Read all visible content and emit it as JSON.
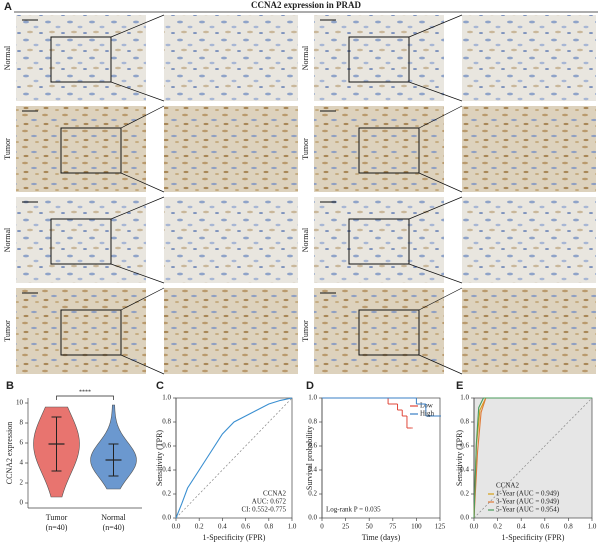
{
  "panel_a": {
    "label": "A",
    "title": "CCNA2 expression in PRAD",
    "row_labels": [
      "Normal",
      "Tumor",
      "Normal",
      "Tumor"
    ]
  },
  "chart_data": [
    {
      "type": "violin",
      "label": "B",
      "ylabel": "CCNA2 expression",
      "categories": [
        "Tumor",
        "Normal"
      ],
      "sublabels": [
        "(n=40)",
        "(n=40)"
      ],
      "colors": [
        "#e8746f",
        "#6b98cf"
      ],
      "means": [
        5.9,
        4.3
      ],
      "sd": [
        2.7,
        1.6
      ],
      "min": [
        0.6,
        1.4
      ],
      "max": [
        9.6,
        9.8
      ],
      "significance": "****",
      "ylim": [
        -0.5,
        10.5
      ],
      "yticks": [
        0,
        2,
        4,
        6,
        8,
        10
      ]
    },
    {
      "type": "roc",
      "label": "C",
      "xlabel": "1-Specificity (FPR)",
      "ylabel": "Sensitivity (TPR)",
      "legend": [
        "CCNA2",
        "AUC: 0.672",
        "CI: 0.552-0.775"
      ],
      "series": [
        {
          "color": "#3a8fd1",
          "x": [
            0,
            0.05,
            0.1,
            0.2,
            0.3,
            0.4,
            0.5,
            0.6,
            0.7,
            0.8,
            0.9,
            1.0
          ],
          "values": [
            0,
            0.12,
            0.25,
            0.4,
            0.55,
            0.7,
            0.8,
            0.85,
            0.9,
            0.95,
            0.98,
            1.0
          ]
        }
      ],
      "xlim": [
        0,
        1
      ],
      "ylim": [
        0,
        1
      ],
      "xticks": [
        {
          "value": 0,
          "label": "0.0"
        },
        {
          "value": 0.2,
          "label": "0.2"
        },
        {
          "value": 0.4,
          "label": "0.4"
        },
        {
          "value": 0.6,
          "label": "0.6"
        },
        {
          "value": 0.8,
          "label": "0.8"
        },
        {
          "value": 1,
          "label": "1.0"
        }
      ],
      "yticks": [
        {
          "value": 0,
          "label": "0.0"
        },
        {
          "value": 0.2,
          "label": "0.2"
        },
        {
          "value": 0.4,
          "label": "0.4"
        },
        {
          "value": 0.6,
          "label": "0.6"
        },
        {
          "value": 0.8,
          "label": "0.8"
        },
        {
          "value": 1,
          "label": "1.0"
        }
      ]
    },
    {
      "type": "survival",
      "label": "D",
      "xlabel": "Time (days)",
      "ylabel": "Survival probability",
      "annotation": "Log-rank P = 0.035",
      "series": [
        {
          "name": "Low",
          "color": "#e0473a",
          "x": [
            0,
            60,
            70,
            80,
            85,
            90,
            95
          ],
          "values": [
            1,
            1,
            0.95,
            0.9,
            0.85,
            0.75,
            0.75
          ]
        },
        {
          "name": "High",
          "color": "#3a7fc4",
          "x": [
            0,
            95,
            100,
            110,
            125
          ],
          "values": [
            1,
            1,
            0.95,
            0.85,
            0.85
          ]
        }
      ],
      "xlim": [
        0,
        125
      ],
      "ylim": [
        0,
        1
      ],
      "xticks": [
        0,
        25,
        50,
        75,
        100,
        125
      ],
      "yticks": [
        {
          "value": 0,
          "label": "0.0"
        },
        {
          "value": 0.2,
          "label": "0.2"
        },
        {
          "value": 0.4,
          "label": "0.4"
        },
        {
          "value": 0.6,
          "label": "0.6"
        },
        {
          "value": 0.8,
          "label": "0.8"
        },
        {
          "value": 1,
          "label": "1.0"
        }
      ]
    },
    {
      "type": "roc",
      "label": "E",
      "xlabel": "1-Specificity (FPR)",
      "ylabel": "Sensitivity (TPR)",
      "legend": [
        "CCNA2",
        "1-Year (AUC = 0.949)",
        "3-Year (AUC = 0.949)",
        "5-Year (AUC = 0.954)"
      ],
      "series": [
        {
          "color": "#d4a017",
          "x": [
            0,
            0.02,
            0.05,
            0.1,
            1
          ],
          "values": [
            0,
            0.6,
            0.9,
            1,
            1
          ]
        },
        {
          "color": "#e07b39",
          "x": [
            0,
            0.03,
            0.06,
            0.1,
            1
          ],
          "values": [
            0,
            0.55,
            0.88,
            1,
            1
          ]
        },
        {
          "color": "#4a9b5b",
          "x": [
            0,
            0.02,
            0.04,
            0.08,
            1
          ],
          "values": [
            0,
            0.62,
            0.92,
            1,
            1
          ]
        }
      ],
      "xlim": [
        0,
        1
      ],
      "ylim": [
        0,
        1
      ],
      "xticks": [
        {
          "value": 0,
          "label": "0.0"
        },
        {
          "value": 0.2,
          "label": "0.2"
        },
        {
          "value": 0.4,
          "label": "0.4"
        },
        {
          "value": 0.6,
          "label": "0.6"
        },
        {
          "value": 0.8,
          "label": "0.8"
        },
        {
          "value": 1,
          "label": "1.0"
        }
      ],
      "yticks": [
        {
          "value": 0,
          "label": "0.0"
        },
        {
          "value": 0.2,
          "label": "0.2"
        },
        {
          "value": 0.4,
          "label": "0.4"
        },
        {
          "value": 0.6,
          "label": "0.6"
        },
        {
          "value": 0.8,
          "label": "0.8"
        },
        {
          "value": 1,
          "label": "1.0"
        }
      ]
    }
  ]
}
